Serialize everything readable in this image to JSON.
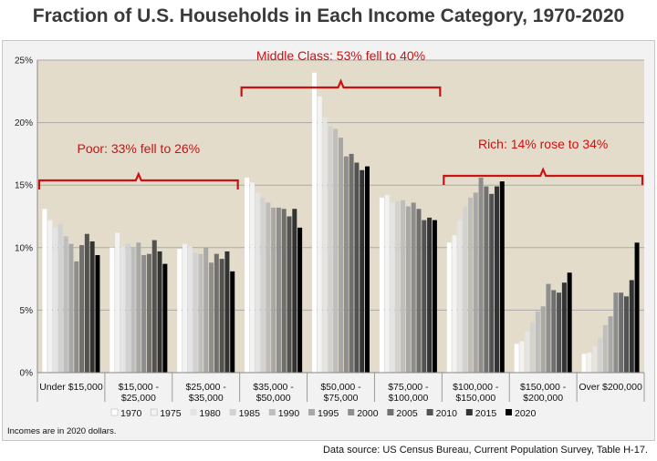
{
  "chart_data": {
    "type": "bar",
    "title": "Fraction of U.S. Households in Each Income Category, 1970-2020",
    "xlabel": "",
    "ylabel": "",
    "ylim": [
      0,
      25
    ],
    "yticks": [
      "0%",
      "5%",
      "10%",
      "15%",
      "20%",
      "25%"
    ],
    "grid": true,
    "categories": [
      "Under $15,000",
      "$15,000 -\n$25,000",
      "$25,000 -\n$35,000",
      "$35,000 -\n$50,000",
      "$50,000 -\n$75,000",
      "$75,000 -\n$100,000",
      "$100,000 -\n$150,000",
      "$150,000 -\n$200,000",
      "Over $200,000"
    ],
    "years": [
      "1970",
      "1975",
      "1980",
      "1985",
      "1990",
      "1995",
      "2000",
      "2005",
      "2010",
      "2015",
      "2020"
    ],
    "series_colors": [
      "#ffffff",
      "#f2f2f2",
      "#e4e4e4",
      "#d2d2d2",
      "#bebebe",
      "#a8a8a8",
      "#8e8e8e",
      "#707070",
      "#525252",
      "#333333",
      "#000000"
    ],
    "values": [
      [
        13.1,
        12.2,
        11.6,
        11.9,
        10.9,
        10.3,
        8.9,
        10.2,
        11.1,
        10.5,
        9.4
      ],
      [
        10.0,
        11.2,
        10.1,
        10.3,
        10.0,
        10.4,
        9.4,
        9.5,
        10.6,
        9.7,
        8.7
      ],
      [
        9.9,
        10.3,
        10.1,
        9.6,
        9.5,
        10.0,
        8.8,
        9.5,
        9.1,
        9.7,
        8.1
      ],
      [
        15.6,
        15.2,
        14.4,
        14.0,
        13.6,
        13.2,
        13.2,
        13.1,
        12.5,
        13.1,
        11.6
      ],
      [
        24.0,
        22.1,
        20.4,
        19.7,
        19.5,
        18.8,
        17.3,
        17.5,
        16.8,
        16.2,
        16.5
      ],
      [
        14.0,
        14.2,
        13.6,
        13.7,
        13.8,
        13.3,
        13.6,
        13.1,
        12.2,
        12.4,
        12.2
      ],
      [
        10.4,
        11.0,
        12.2,
        13.3,
        14.0,
        14.4,
        15.6,
        14.9,
        14.3,
        14.9,
        15.3
      ],
      [
        2.3,
        2.5,
        3.3,
        4.1,
        4.9,
        5.3,
        7.1,
        6.6,
        6.4,
        7.2,
        8.0
      ],
      [
        1.5,
        1.6,
        2.1,
        2.8,
        3.8,
        4.5,
        6.4,
        6.4,
        6.1,
        7.4,
        10.4
      ]
    ],
    "annotations": [
      {
        "label": "Poor: 33% fell to 26%",
        "from": 0,
        "to": 2
      },
      {
        "label": "Middle Class: 53% fell to 40%",
        "from": 3,
        "to": 5
      },
      {
        "label": "Rich: 14% rose to 34%",
        "from": 6,
        "to": 8
      }
    ],
    "note": "Incomes are in 2020 dollars.",
    "accent_color": "#cc1111",
    "plot_bg": "#e3dccb"
  },
  "footer": {
    "source": "Data source: US Census Bureau, Current Population Survey, Table H-17."
  }
}
